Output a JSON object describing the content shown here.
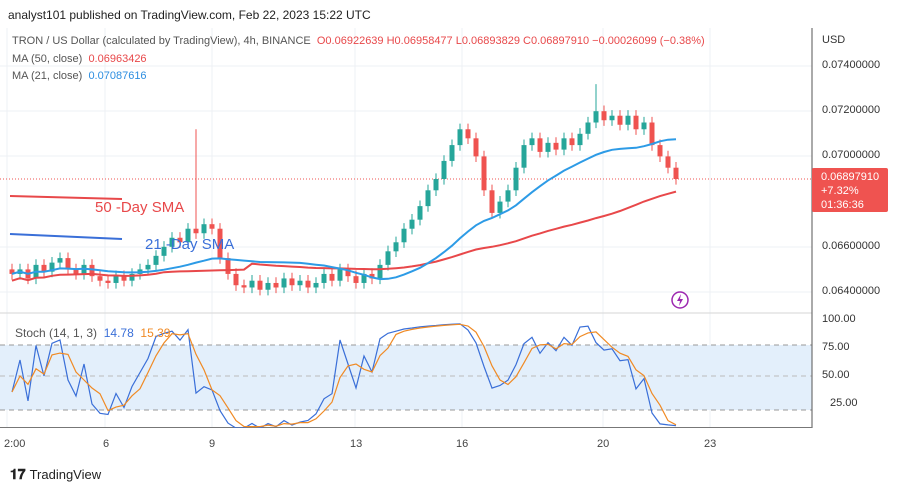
{
  "header": {
    "text": "analyst101 published on TradingView.com, Feb 22, 2023 15:22 UTC"
  },
  "legend": {
    "symbol": "TRON / US Dollar (calculated by TradingView), 4h, BINANCE",
    "o": "O0.06922639",
    "h": "H0.06958477",
    "l": "L0.06893829",
    "c": "C0.06897910",
    "change": "−0.00026099 (−0.38%)",
    "ma50_label": "MA (50, close)",
    "ma50_value": "0.06963426",
    "ma21_label": "MA (21, close)",
    "ma21_value": "0.07087616",
    "stoch_label": "Stoch (14, 1, 3)",
    "stoch_k": "14.78",
    "stoch_d": "15.39"
  },
  "price_axis": {
    "currency": "USD",
    "labels": [
      "0.07400000",
      "0.07200000",
      "0.07000000",
      "0.06600000",
      "0.06400000"
    ]
  },
  "stoch_axis": {
    "labels": [
      "100.00",
      "75.00",
      "50.00",
      "25.00"
    ]
  },
  "last_price": {
    "price": "0.06897910",
    "change": "+7.32%",
    "countdown": "01:36:36"
  },
  "x_axis": {
    "labels": [
      "2:00",
      "6",
      "9",
      "13",
      "16",
      "20",
      "23"
    ]
  },
  "annotations": {
    "sma50": "50 -Day SMA",
    "sma21": "21 -Day SMA"
  },
  "colors": {
    "up": "#26a69a",
    "down": "#ef5350",
    "ma50": "#e8484a",
    "ma21": "#2d9be6",
    "stoch_k": "#3a6fd8",
    "stoch_d": "#f08a24"
  },
  "footer": {
    "brand": "TradingView"
  },
  "chart_data": {
    "type": "candlestick",
    "closes": [
      0.0648,
      0.065,
      0.0646,
      0.0652,
      0.0649,
      0.0653,
      0.0655,
      0.065,
      0.0648,
      0.0652,
      0.0647,
      0.0645,
      0.0644,
      0.0647,
      0.0645,
      0.0648,
      0.065,
      0.0652,
      0.0656,
      0.066,
      0.0664,
      0.0662,
      0.0668,
      0.0666,
      0.067,
      0.0668,
      0.0655,
      0.0648,
      0.0643,
      0.0642,
      0.0645,
      0.0641,
      0.0644,
      0.0642,
      0.0646,
      0.0643,
      0.0645,
      0.0642,
      0.0644,
      0.0648,
      0.0645,
      0.065,
      0.0647,
      0.0644,
      0.0648,
      0.0646,
      0.0652,
      0.0658,
      0.0662,
      0.0668,
      0.0672,
      0.0678,
      0.0685,
      0.069,
      0.0698,
      0.0705,
      0.0712,
      0.0708,
      0.07,
      0.0685,
      0.0675,
      0.068,
      0.0685,
      0.0695,
      0.0705,
      0.0708,
      0.0702,
      0.0706,
      0.0703,
      0.0708,
      0.0705,
      0.071,
      0.0715,
      0.072,
      0.0716,
      0.0718,
      0.0714,
      0.0718,
      0.0712,
      0.0715,
      0.0705,
      0.07,
      0.0695,
      0.069
    ],
    "wick_highs": {
      "23": 0.0712,
      "73": 0.0732
    },
    "ylim": [
      0.0635,
      0.0745
    ],
    "stoch_ylim": [
      0,
      100
    ]
  }
}
